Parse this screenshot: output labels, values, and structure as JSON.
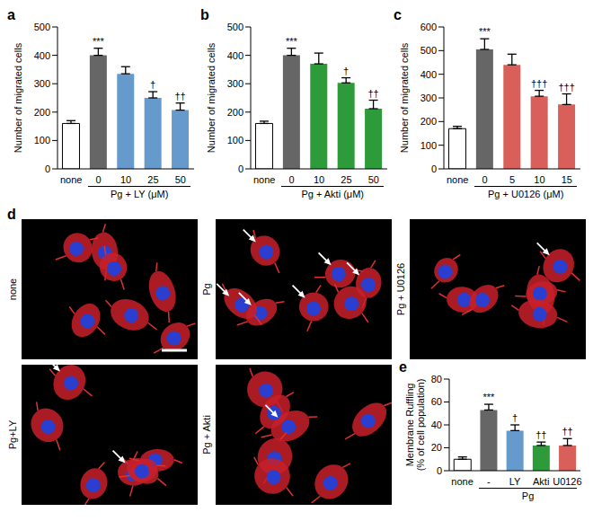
{
  "chart_data": [
    {
      "type": "bar",
      "title": "a",
      "categories": [
        "none",
        "0",
        "10",
        "25",
        "50"
      ],
      "values": [
        160,
        400,
        335,
        250,
        207
      ],
      "errors": [
        10,
        25,
        25,
        22,
        25
      ],
      "colors": [
        "#ffffff",
        "#666666",
        "#6699cc",
        "#6699cc",
        "#6699cc"
      ],
      "annotations": [
        null,
        "***",
        null,
        "†",
        "††"
      ],
      "xlabel": "Pg + LY (μM)",
      "ylabel": "Number of migrated cells",
      "ylim": [
        0,
        500
      ],
      "yticks": [
        0,
        100,
        200,
        300,
        400,
        500
      ]
    },
    {
      "type": "bar",
      "title": "b",
      "categories": [
        "none",
        "0",
        "10",
        "25",
        "50"
      ],
      "values": [
        160,
        400,
        370,
        303,
        212
      ],
      "errors": [
        8,
        25,
        38,
        18,
        30
      ],
      "colors": [
        "#ffffff",
        "#666666",
        "#2e9b3a",
        "#2e9b3a",
        "#2e9b3a"
      ],
      "annotations": [
        null,
        "***",
        null,
        "†",
        "††"
      ],
      "xlabel": "Pg + Akti (μM)",
      "ylabel": "Number of migrated cells",
      "ylim": [
        0,
        500
      ],
      "yticks": [
        0,
        100,
        200,
        300,
        400,
        500
      ]
    },
    {
      "type": "bar",
      "title": "c",
      "categories": [
        "none",
        "0",
        "5",
        "10",
        "15"
      ],
      "values": [
        170,
        505,
        440,
        307,
        272
      ],
      "errors": [
        10,
        45,
        45,
        25,
        45
      ],
      "colors": [
        "#ffffff",
        "#666666",
        "#d9605a",
        "#d9605a",
        "#d9605a"
      ],
      "annotations": [
        null,
        "***",
        null,
        "†††",
        "†††"
      ],
      "xlabel": "Pg + U0126 (μM)",
      "ylabel": "Number of migrated cells",
      "ylim": [
        0,
        600
      ],
      "yticks": [
        0,
        100,
        200,
        300,
        400,
        500,
        600
      ]
    },
    {
      "type": "bar",
      "title": "e",
      "categories": [
        "none",
        "-",
        "LY",
        "Akti",
        "U0126"
      ],
      "values": [
        10,
        53,
        35,
        22,
        22
      ],
      "errors": [
        2,
        5,
        5,
        3,
        6
      ],
      "colors": [
        "#ffffff",
        "#666666",
        "#6699cc",
        "#2e9b3a",
        "#d9605a"
      ],
      "annotations": [
        null,
        "***",
        "†",
        "††",
        "††"
      ],
      "xlabel": "Pg",
      "ylabel": [
        "Membrane Ruffling",
        "(% of cell population)"
      ],
      "ylim": [
        0,
        80
      ],
      "yticks": [
        0,
        20,
        40,
        60,
        80
      ]
    }
  ],
  "panel_d": {
    "title": "d",
    "images": [
      {
        "label": "none"
      },
      {
        "label": "Pg"
      },
      {
        "label": "Pg + U0126"
      },
      {
        "label": "Pg+LY"
      },
      {
        "label": "Pg + Akti"
      }
    ]
  }
}
